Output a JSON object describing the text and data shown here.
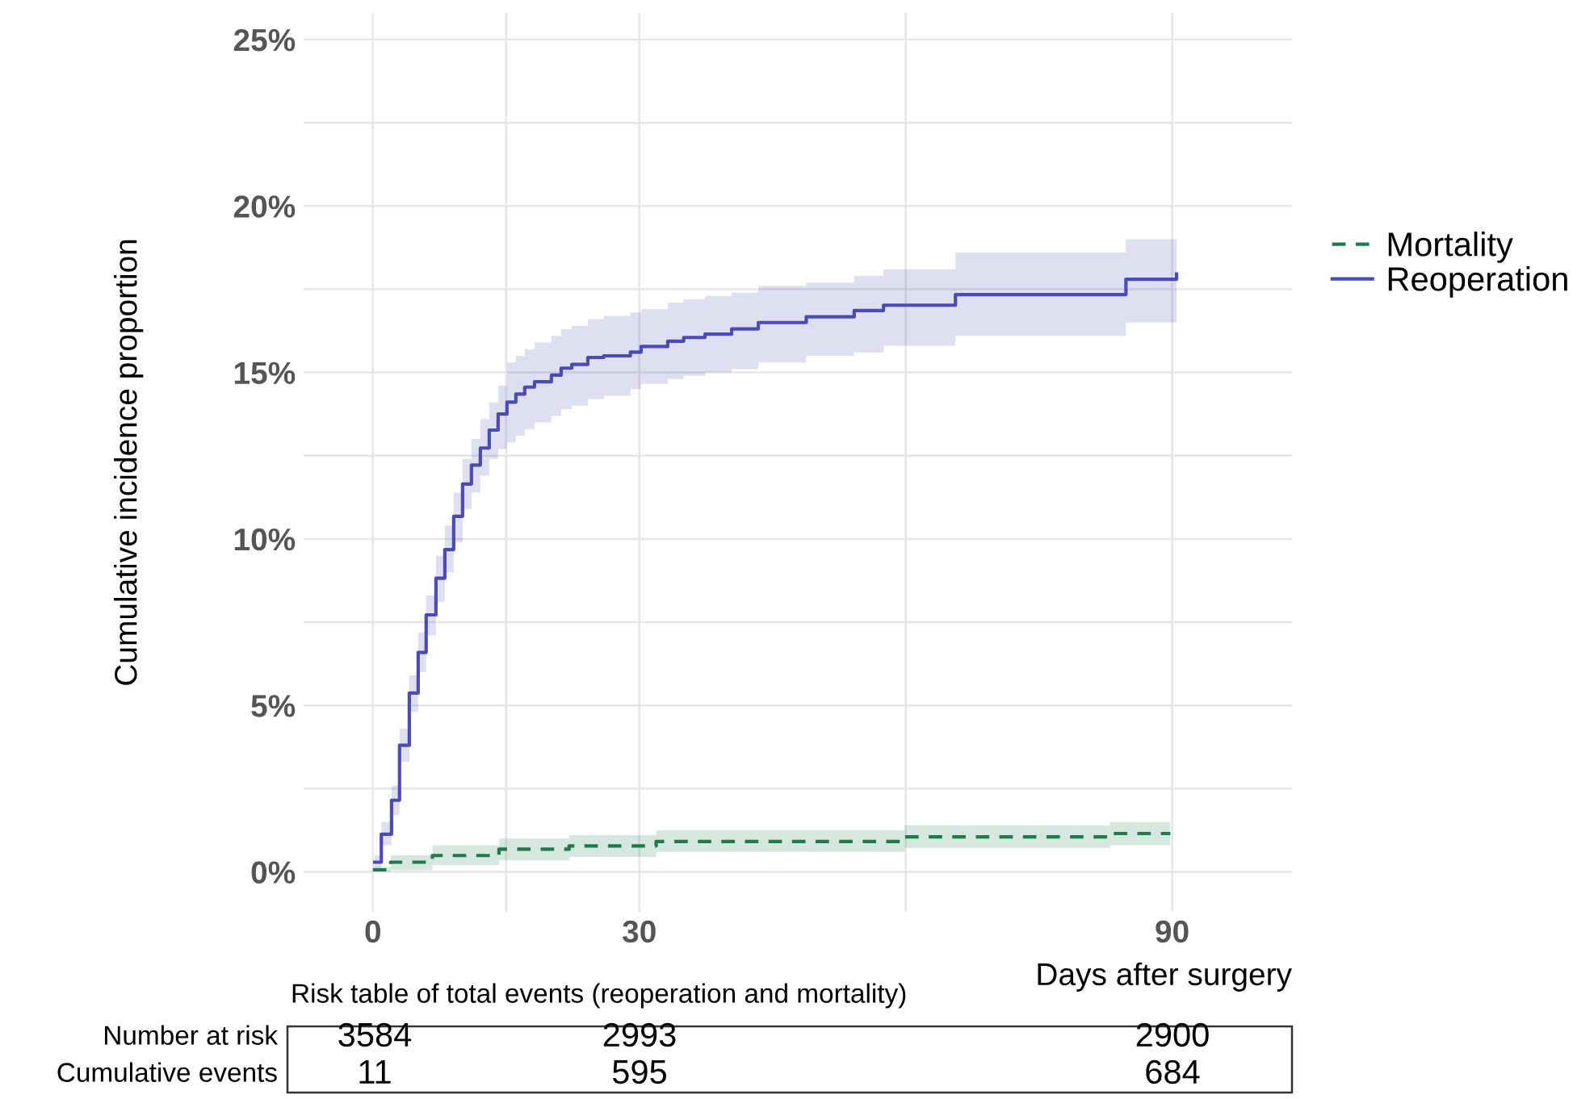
{
  "chart_data": {
    "type": "step",
    "ylabel": "Cumulative incidence proportion",
    "xlabel": "Days after surgery",
    "xlim": [
      -7.8,
      103.5
    ],
    "xticks": [
      0,
      {
        "value": 15,
        "label": null
      },
      30,
      {
        "value": 60,
        "label": null
      },
      90
    ],
    "ylim": [
      -1.2,
      25.8
    ],
    "yticks": [
      {
        "value": 0,
        "label": "0%"
      },
      {
        "value": 2.5,
        "label": null
      },
      {
        "value": 5,
        "label": "5%"
      },
      {
        "value": 7.5,
        "label": null
      },
      {
        "value": 10,
        "label": "10%"
      },
      {
        "value": 12.5,
        "label": null
      },
      {
        "value": 15,
        "label": "15%"
      },
      {
        "value": 17.5,
        "label": null
      },
      {
        "value": 20,
        "label": "20%"
      },
      {
        "value": 22.5,
        "label": null
      },
      {
        "value": 25,
        "label": "25%"
      }
    ],
    "grid": true,
    "legend": "right",
    "series": [
      {
        "name": "Mortality",
        "color": "#1e7a4c",
        "line_style": "dashed",
        "x": [
          0,
          2,
          6.7,
          14.2,
          22.1,
          31.9,
          59.9,
          83,
          89.8
        ],
        "values": [
          0.06,
          0.29,
          0.49,
          0.68,
          0.78,
          0.91,
          1.05,
          1.15,
          1.15
        ],
        "lower": [
          0,
          0.05,
          0.2,
          0.35,
          0.45,
          0.6,
          0.72,
          0.8,
          0.8
        ],
        "upper": [
          0.15,
          0.5,
          0.8,
          1.0,
          1.1,
          1.25,
          1.4,
          1.5,
          1.5
        ]
      },
      {
        "name": "Reoperation",
        "color": "#4b4bb8",
        "line_style": "solid",
        "x": [
          0.2,
          0.95,
          2.1,
          3.0,
          4.1,
          5.1,
          6.0,
          7.1,
          8.1,
          9.1,
          10.1,
          11.1,
          12.1,
          13.1,
          14.1,
          15.1,
          16.1,
          17.1,
          18.2,
          20.1,
          21.2,
          22.4,
          24.2,
          26,
          29,
          30.2,
          33.2,
          35,
          37.4,
          40.4,
          43.4,
          48.8,
          54.2,
          57.5,
          65.6,
          84.8,
          90.5
        ],
        "values": [
          0.29,
          1.13,
          2.15,
          3.8,
          5.37,
          6.59,
          7.72,
          8.82,
          9.68,
          10.68,
          11.65,
          12.22,
          12.73,
          13.27,
          13.75,
          14.11,
          14.35,
          14.56,
          14.72,
          14.92,
          15.13,
          15.24,
          15.45,
          15.5,
          15.61,
          15.78,
          15.94,
          16.05,
          16.15,
          16.31,
          16.5,
          16.67,
          16.86,
          17.02,
          17.34,
          17.8,
          17.96
        ],
        "lower": [
          0.1,
          0.8,
          1.7,
          3.3,
          4.8,
          6.0,
          7.1,
          8.1,
          9.0,
          9.9,
          10.9,
          11.4,
          11.9,
          12.4,
          12.7,
          12.9,
          13.1,
          13.3,
          13.5,
          13.7,
          13.9,
          14.0,
          14.2,
          14.3,
          14.5,
          14.66,
          14.8,
          14.9,
          15.0,
          15.1,
          15.3,
          15.5,
          15.6,
          15.8,
          16.1,
          16.5,
          16.7
        ],
        "upper": [
          0.5,
          1.5,
          2.6,
          4.3,
          5.9,
          7.2,
          8.3,
          9.5,
          10.4,
          11.4,
          12.4,
          13.0,
          13.6,
          14.1,
          14.6,
          15.3,
          15.5,
          15.7,
          15.9,
          16.1,
          16.3,
          16.4,
          16.6,
          16.7,
          16.8,
          16.9,
          17.1,
          17.2,
          17.3,
          17.4,
          17.6,
          17.7,
          17.9,
          18.1,
          18.6,
          19.0,
          19.2
        ]
      }
    ],
    "annotations": [
      "Risk table of total events (reoperation and mortality)",
      "Number at risk",
      "Cumulative events",
      "3584",
      "2993",
      "2900",
      "11",
      "595",
      "684"
    ]
  }
}
